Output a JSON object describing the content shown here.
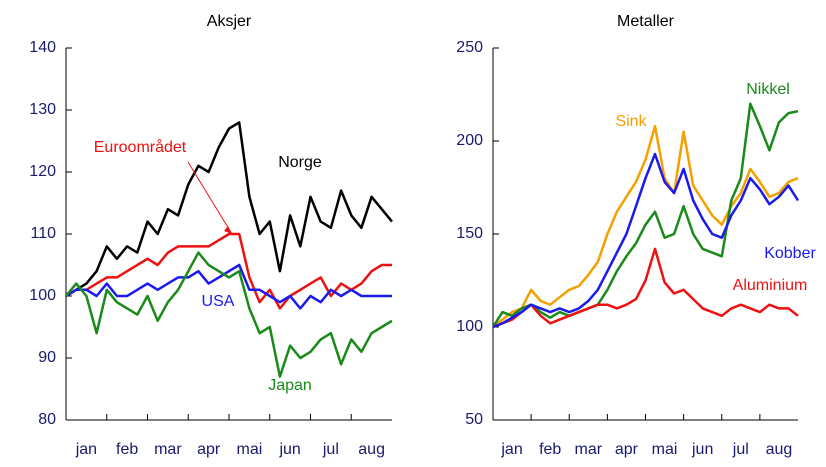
{
  "chart_data": [
    {
      "type": "line",
      "title": "Aksjer",
      "categories": [
        "jan",
        "feb",
        "mar",
        "apr",
        "mai",
        "jun",
        "jul",
        "aug"
      ],
      "x": [
        0,
        0.25,
        0.5,
        0.75,
        1,
        1.25,
        1.5,
        1.75,
        2,
        2.25,
        2.5,
        2.75,
        3,
        3.25,
        3.5,
        3.75,
        4,
        4.25,
        4.5,
        4.75,
        5,
        5.25,
        5.5,
        5.75,
        6,
        6.25,
        6.5,
        6.75,
        7,
        7.25,
        7.5,
        7.75,
        8
      ],
      "xlim": [
        0,
        8
      ],
      "ylim": [
        80,
        140
      ],
      "yticks": [
        80,
        90,
        100,
        110,
        120,
        130,
        140
      ],
      "series": [
        {
          "name": "Norge",
          "color": "#000000",
          "values": [
            100,
            101,
            102,
            104,
            108,
            106,
            108,
            107,
            112,
            110,
            114,
            113,
            118,
            121,
            120,
            124,
            127,
            128,
            116,
            110,
            112,
            104,
            113,
            108,
            116,
            112,
            111,
            117,
            113,
            111,
            116,
            114,
            112
          ]
        },
        {
          "name": "Euroområdet",
          "color": "#ee1111",
          "values": [
            100,
            101,
            101,
            102,
            103,
            103,
            104,
            105,
            106,
            105,
            107,
            108,
            108,
            108,
            108,
            109,
            110,
            110,
            103,
            99,
            101,
            98,
            100,
            101,
            102,
            103,
            100,
            102,
            101,
            102,
            104,
            105,
            105
          ]
        },
        {
          "name": "USA",
          "color": "#1a1aee",
          "values": [
            100,
            101,
            101,
            100,
            102,
            100,
            100,
            101,
            102,
            101,
            102,
            103,
            103,
            104,
            102,
            103,
            104,
            105,
            101,
            101,
            100,
            99,
            100,
            98,
            100,
            99,
            101,
            100,
            101,
            100,
            100,
            100,
            100
          ]
        },
        {
          "name": "Japan",
          "color": "#1a8a1a",
          "values": [
            100,
            102,
            100,
            94,
            101,
            99,
            98,
            97,
            100,
            96,
            99,
            101,
            104,
            107,
            105,
            104,
            103,
            104,
            98,
            94,
            95,
            87,
            92,
            90,
            91,
            93,
            94,
            89,
            93,
            91,
            94,
            95,
            96
          ]
        }
      ]
    },
    {
      "type": "line",
      "title": "Metaller",
      "categories": [
        "jan",
        "feb",
        "mar",
        "apr",
        "mai",
        "jun",
        "jul",
        "aug"
      ],
      "x": [
        0,
        0.25,
        0.5,
        0.75,
        1,
        1.25,
        1.5,
        1.75,
        2,
        2.25,
        2.5,
        2.75,
        3,
        3.25,
        3.5,
        3.75,
        4,
        4.25,
        4.5,
        4.75,
        5,
        5.25,
        5.5,
        5.75,
        6,
        6.25,
        6.5,
        6.75,
        7,
        7.25,
        7.5,
        7.75,
        8
      ],
      "xlim": [
        0,
        8
      ],
      "ylim": [
        50,
        250
      ],
      "yticks": [
        50,
        100,
        150,
        200,
        250
      ],
      "series": [
        {
          "name": "Sink",
          "color": "#f5a000",
          "values": [
            100,
            104,
            108,
            110,
            120,
            114,
            112,
            116,
            120,
            122,
            128,
            135,
            150,
            162,
            170,
            178,
            190,
            208,
            180,
            172,
            205,
            176,
            168,
            160,
            155,
            165,
            172,
            185,
            178,
            170,
            172,
            178,
            180
          ]
        },
        {
          "name": "Nikkel",
          "color": "#1a8a1a",
          "values": [
            100,
            108,
            106,
            110,
            112,
            108,
            105,
            108,
            106,
            108,
            110,
            112,
            120,
            130,
            138,
            145,
            155,
            162,
            148,
            150,
            165,
            150,
            142,
            140,
            138,
            168,
            180,
            220,
            208,
            195,
            210,
            215,
            216
          ]
        },
        {
          "name": "Aluminium",
          "color": "#ee1111",
          "values": [
            100,
            102,
            104,
            108,
            112,
            106,
            102,
            104,
            106,
            108,
            110,
            112,
            112,
            110,
            112,
            115,
            125,
            142,
            124,
            118,
            120,
            115,
            110,
            108,
            106,
            110,
            112,
            110,
            108,
            112,
            110,
            110,
            106
          ]
        },
        {
          "name": "Kobber",
          "color": "#1a1aee",
          "values": [
            100,
            102,
            105,
            108,
            112,
            110,
            108,
            110,
            108,
            110,
            114,
            120,
            130,
            140,
            150,
            165,
            180,
            193,
            178,
            172,
            185,
            168,
            158,
            150,
            148,
            160,
            168,
            180,
            174,
            166,
            170,
            176,
            168
          ]
        }
      ]
    }
  ]
}
